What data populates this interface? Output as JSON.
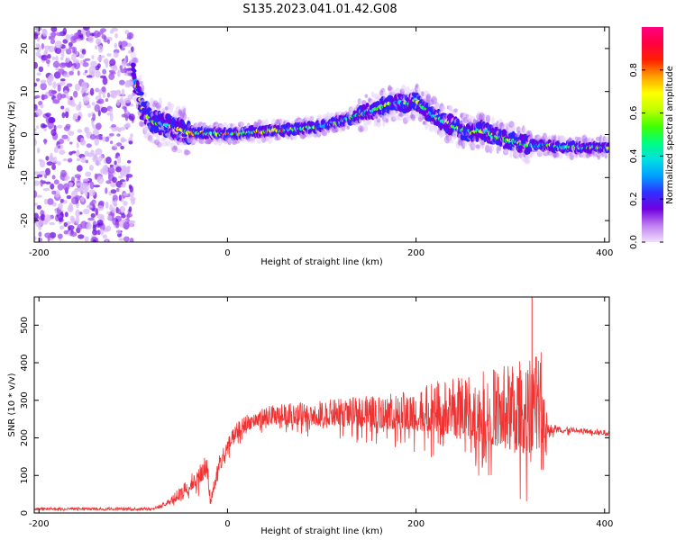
{
  "title": "S135.2023.041.01.42.G08",
  "chart_data": [
    {
      "type": "heatmap",
      "xlabel": "Height of straight line (km)",
      "ylabel": "Frequency (Hz)",
      "xlim": [
        -205,
        405
      ],
      "ylim": [
        -25,
        25
      ],
      "x_ticks": [
        -200,
        0,
        200,
        400
      ],
      "y_ticks": [
        20,
        10,
        0,
        -10,
        -20
      ],
      "grid": false,
      "colorbar": {
        "label": "Normalized spectral amplitude",
        "range": [
          0,
          1
        ],
        "ticks": [
          "0.0",
          "0.2",
          "0.4",
          "0.6",
          "0.8"
        ],
        "colors": [
          "#f0e0fb",
          "#c080f0",
          "#7000e0",
          "#3030ff",
          "#00a0ff",
          "#00e0e0",
          "#00ff80",
          "#40ff00",
          "#c0ff00",
          "#ffff00",
          "#ffa000",
          "#ff2000",
          "#ff0040",
          "#ff0080"
        ]
      },
      "noise_region": {
        "x": [
          -205,
          -100
        ],
        "freq": [
          -25,
          25
        ]
      },
      "ridge": {
        "x": [
          -100,
          -90,
          -80,
          -70,
          -60,
          -50,
          -40,
          -20,
          0,
          20,
          40,
          60,
          80,
          100,
          120,
          140,
          150,
          160,
          170,
          180,
          190,
          200,
          210,
          220,
          230,
          240,
          250,
          260,
          270,
          280,
          290,
          300,
          320,
          340,
          360,
          380,
          400
        ],
        "freq": [
          14,
          6,
          3,
          2.5,
          2,
          1,
          0.5,
          0.3,
          0,
          0.5,
          0.8,
          1,
          1.5,
          2,
          3,
          4.5,
          5.5,
          6,
          7,
          7.5,
          7,
          8,
          6,
          4,
          3,
          2,
          1,
          0.5,
          1,
          0,
          -1,
          -1.5,
          -2.5,
          -2.5,
          -3,
          -3,
          -3
        ]
      }
    },
    {
      "type": "line",
      "color": "#ef3333",
      "xlabel": "Height of straight line (km)",
      "ylabel": "SNR (10 * v/v)",
      "xlim": [
        -205,
        405
      ],
      "ylim": [
        0,
        575
      ],
      "x_ticks": [
        -200,
        0,
        200,
        400
      ],
      "y_ticks": [
        0,
        100,
        200,
        300,
        400,
        500
      ],
      "grid": false,
      "series": [
        {
          "envelope": {
            "x": [
              -205,
              -80,
              -70,
              -60,
              -50,
              -40,
              -30,
              -22,
              -18,
              -10,
              0,
              10,
              20,
              30,
              40,
              60,
              80,
              100,
              120,
              140,
              160,
              180,
              200,
              220,
              240,
              260,
              280,
              300,
              320,
              335,
              340,
              360,
              380,
              405
            ],
            "y": [
              15,
              15,
              25,
              45,
              70,
              100,
              130,
              170,
              40,
              150,
              200,
              240,
              265,
              275,
              285,
              290,
              295,
              300,
              305,
              310,
              315,
              320,
              330,
              350,
              360,
              370,
              385,
              400,
              420,
              430,
              240,
              230,
              225,
              220
            ],
            "low": [
              5,
              5,
              8,
              12,
              20,
              35,
              45,
              60,
              10,
              70,
              140,
              175,
              195,
              205,
              210,
              205,
              200,
              195,
              190,
              185,
              180,
              170,
              160,
              145,
              125,
              100,
              75,
              40,
              20,
              60,
              200,
              205,
              205,
              200
            ]
          },
          "peak": {
            "x": 323,
            "y": 575
          }
        }
      ]
    }
  ]
}
